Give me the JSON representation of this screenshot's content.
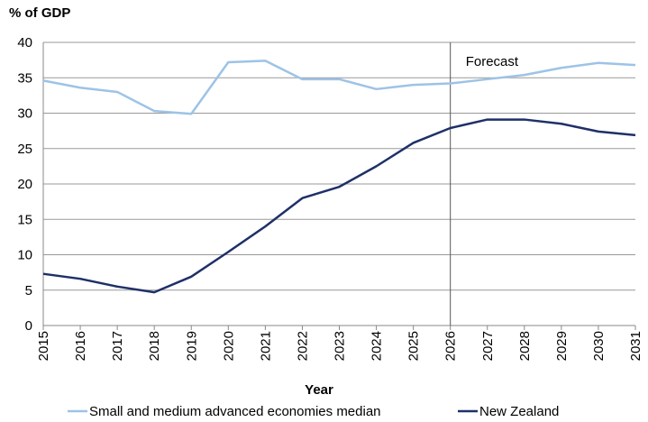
{
  "chart_data": {
    "type": "line",
    "y_label": "% of GDP",
    "x_label": "Year",
    "categories": [
      "2015",
      "2016",
      "2017",
      "2018",
      "2019",
      "2020",
      "2021",
      "2022",
      "2023",
      "2024",
      "2025",
      "2026",
      "2027",
      "2028",
      "2029",
      "2030",
      "2031"
    ],
    "series": [
      {
        "name": "Small and medium advanced economies median",
        "color": "#9dc3e6",
        "values": [
          34.6,
          33.6,
          33.0,
          30.3,
          29.9,
          37.2,
          37.4,
          34.8,
          34.8,
          33.4,
          34.0,
          34.2,
          34.8,
          35.4,
          36.4,
          37.1,
          36.8
        ]
      },
      {
        "name": "New Zealand",
        "color": "#1f3068",
        "values": [
          7.3,
          6.6,
          5.5,
          4.7,
          6.9,
          10.4,
          14.0,
          18.0,
          19.6,
          22.5,
          25.8,
          27.9,
          29.1,
          29.1,
          28.5,
          27.4,
          26.9
        ]
      }
    ],
    "ylim": [
      0,
      40
    ],
    "yticks": [
      0,
      5,
      10,
      15,
      20,
      25,
      30,
      35,
      40
    ],
    "grid": true,
    "annotation": {
      "text": "Forecast",
      "category": "2026"
    },
    "legend": "bottom"
  }
}
